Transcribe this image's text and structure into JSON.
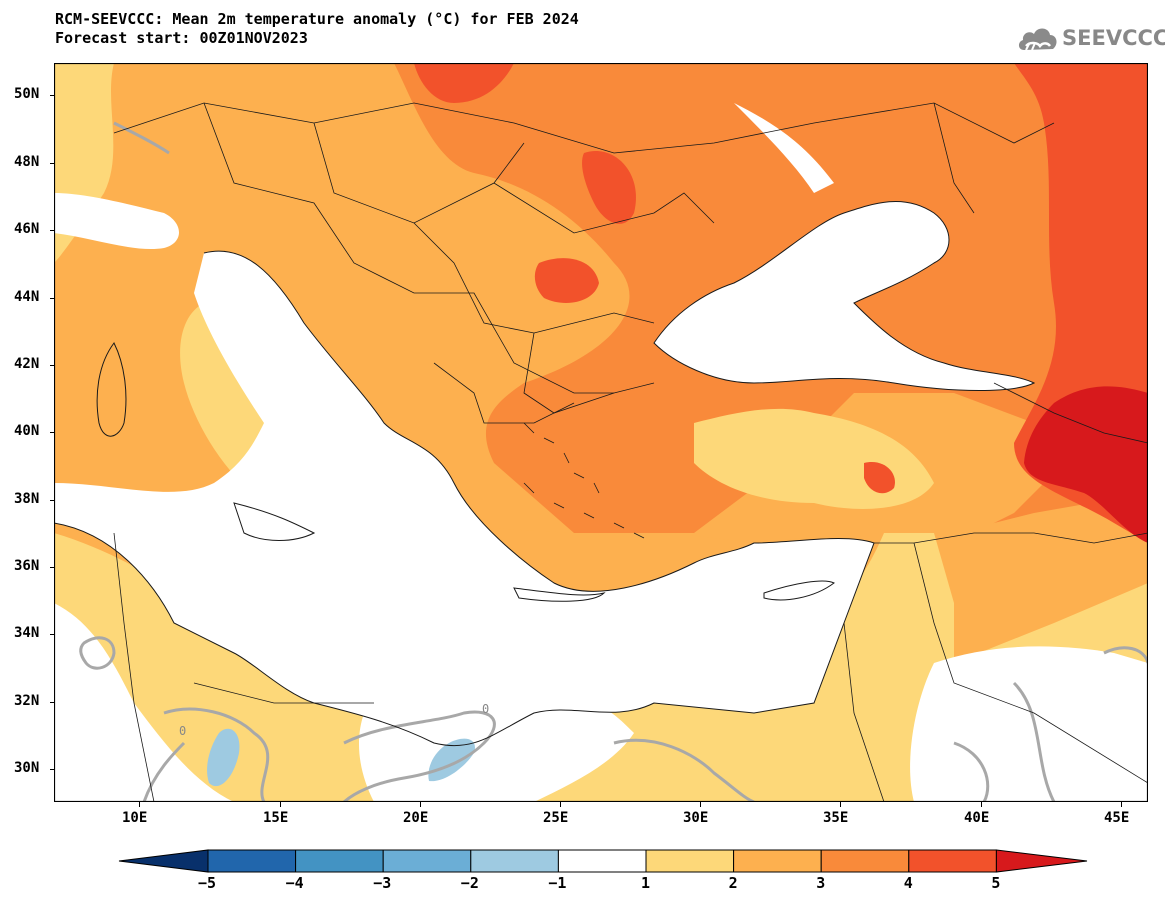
{
  "header": {
    "title_line1": "RCM-SEEVCCC: Mean 2m temperature anomaly (°C) for FEB 2024",
    "title_line2": "Forecast start: 00Z01NOV2023"
  },
  "logo": {
    "text": "SEEVCCC",
    "icon": "cloud-icon",
    "color": "#888888"
  },
  "map": {
    "lat_labels": [
      "50N",
      "48N",
      "46N",
      "44N",
      "42N",
      "40N",
      "38N",
      "36N",
      "34N",
      "32N",
      "30N"
    ],
    "lon_labels": [
      "10E",
      "15E",
      "20E",
      "25E",
      "30E",
      "35E",
      "40E",
      "45E"
    ],
    "zero_contour_label": "0"
  },
  "colorbar": {
    "labels": [
      "−5",
      "−4",
      "−3",
      "−2",
      "−1",
      "1",
      "2",
      "3",
      "4",
      "5"
    ],
    "colors": [
      "#08306b",
      "#2166ac",
      "#4393c3",
      "#6baed6",
      "#9ecae1",
      "#ffffff",
      "#fdd879",
      "#fdb04f",
      "#f98a3a",
      "#f2522b",
      "#d7191c"
    ]
  }
}
